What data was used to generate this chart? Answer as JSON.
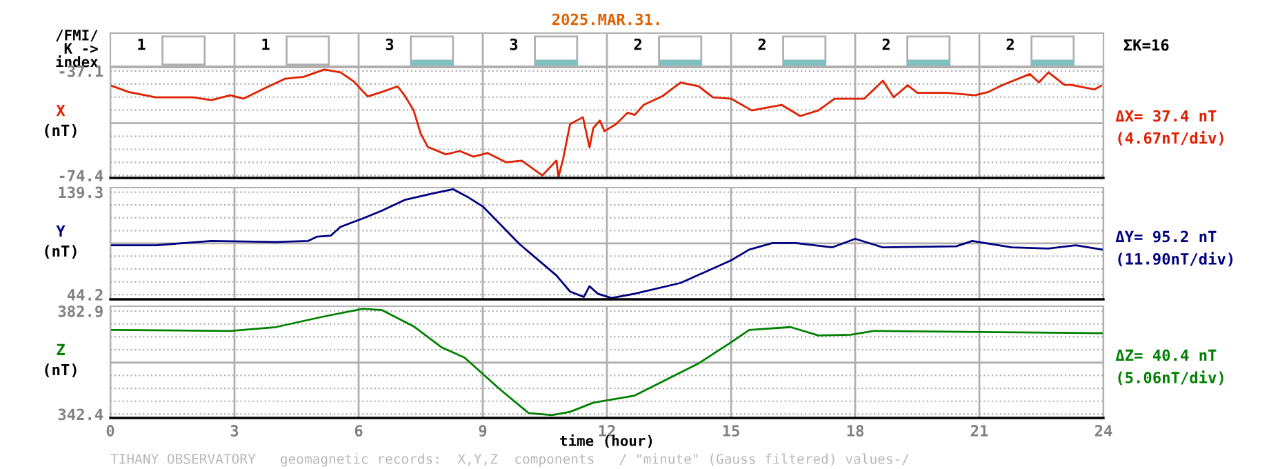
{
  "chart_data": [
    {
      "type": "other",
      "title": "2025.MAR.31.",
      "ylabel": "/FMI/\nK ->\nindex",
      "categories": [
        null,
        null,
        null,
        null,
        null,
        null,
        null,
        null
      ],
      "values": [
        1,
        1,
        3,
        3,
        2,
        2,
        2,
        2
      ],
      "data_labels": true,
      "colors": [
        null,
        null,
        "#80c0c0",
        "#80c0c0",
        "#80c0c0",
        "#80c0c0",
        "#80c0c0",
        "#80c0c0"
      ],
      "annotations": [
        "ΣK=16"
      ]
    },
    {
      "type": "line",
      "ylabel": "(nT)",
      "xlim": [
        0,
        24
      ],
      "xticks": [
        0,
        3,
        6,
        9,
        12,
        15,
        18,
        21,
        24
      ],
      "ylim": [
        -75.3,
        -35.9
      ],
      "yticks": [
        -37.1,
        {
          "value": -41.76,
          "label": null
        },
        {
          "value": -46.43,
          "label": null
        },
        {
          "value": -51.09,
          "label": null
        },
        {
          "value": -55.75,
          "label": null
        },
        {
          "value": -60.41,
          "label": null
        },
        {
          "value": -65.08,
          "label": null
        },
        {
          "value": -69.74,
          "label": null
        },
        -74.4
      ],
      "tick_labels": "y",
      "grid": true,
      "marker": "none",
      "line_style": "solid",
      "series": [
        {
          "name": "X",
          "color": "#e02000",
          "x": [
            0.03,
            0.44,
            1.1,
            2.0,
            2.44,
            2.9,
            3.22,
            3.78,
            4.22,
            4.67,
            5.17,
            5.56,
            5.89,
            6.06,
            6.22,
            6.56,
            6.94,
            7.11,
            7.33,
            7.5,
            7.67,
            8.11,
            8.44,
            8.78,
            9.11,
            9.56,
            9.94,
            10.44,
            10.78,
            10.83,
            10.94,
            11.11,
            11.42,
            11.58,
            11.67,
            11.83,
            11.94,
            12.22,
            12.5,
            12.67,
            12.89,
            13.33,
            13.78,
            14.22,
            14.56,
            15.0,
            15.5,
            16.22,
            16.67,
            17.11,
            17.5,
            18.22,
            18.67,
            18.93,
            19.27,
            19.5,
            20.22,
            20.89,
            21.22,
            21.56,
            22.22,
            22.44,
            22.67,
            23.06,
            23.22,
            23.78,
            23.94
          ],
          "values": [
            -42.4,
            -44.6,
            -46.5,
            -46.5,
            -47.5,
            -45.8,
            -47.0,
            -42.9,
            -39.9,
            -39.2,
            -36.6,
            -37.6,
            -40.9,
            -43.7,
            -46.2,
            -44.6,
            -42.6,
            -45.8,
            -51.2,
            -59.5,
            -64.2,
            -66.9,
            -65.7,
            -67.7,
            -66.4,
            -69.7,
            -69.1,
            -74.4,
            -69.1,
            -75.0,
            -68.6,
            -56.1,
            -53.6,
            -64.4,
            -57.5,
            -54.8,
            -58.6,
            -56.1,
            -52.0,
            -52.8,
            -49.2,
            -46.2,
            -41.2,
            -42.6,
            -46.5,
            -47.0,
            -51.2,
            -49.2,
            -53.2,
            -51.2,
            -47.0,
            -47.0,
            -40.6,
            -46.5,
            -42.2,
            -44.9,
            -44.9,
            -45.8,
            -44.6,
            -42.1,
            -38.2,
            -41.2,
            -37.6,
            -42.1,
            -42.1,
            -43.7,
            -42.4
          ]
        }
      ],
      "annotations": [
        "ΔX= 37.4 nT",
        "(4.67nT/div)"
      ]
    },
    {
      "type": "line",
      "ylabel": "(nT)",
      "xlim": [
        0,
        24
      ],
      "xticks": [
        0,
        3,
        6,
        9,
        12,
        15,
        18,
        21,
        24
      ],
      "ylim": [
        39.8,
        143.5
      ],
      "yticks": [
        139.3,
        {
          "value": 127.41,
          "label": null
        },
        {
          "value": 115.53,
          "label": null
        },
        {
          "value": 103.64,
          "label": null
        },
        {
          "value": 91.75,
          "label": null
        },
        {
          "value": 79.86,
          "label": null
        },
        {
          "value": 67.98,
          "label": null
        },
        {
          "value": 56.09,
          "label": null
        },
        44.2
      ],
      "tick_labels": "y",
      "grid": true,
      "marker": "none",
      "line_style": "solid",
      "series": [
        {
          "name": "Y",
          "color": "#000080",
          "x": [
            0.03,
            1.1,
            2.44,
            4.0,
            4.78,
            5.0,
            5.33,
            5.56,
            6.11,
            6.56,
            7.11,
            7.78,
            8.28,
            8.67,
            9.0,
            9.89,
            10.78,
            11.11,
            11.44,
            11.58,
            11.78,
            12.11,
            12.67,
            13.78,
            15.0,
            15.44,
            16.0,
            16.56,
            17.44,
            18.0,
            18.67,
            20.44,
            20.83,
            21.78,
            22.67,
            23.33,
            23.97
          ],
          "values": [
            90,
            90,
            94,
            93,
            94,
            98,
            99,
            107,
            115,
            122,
            132,
            138,
            142,
            134,
            126,
            91,
            62,
            47,
            42,
            52,
            45,
            41,
            45,
            55,
            76,
            86,
            92,
            92,
            88,
            96,
            88,
            89,
            94,
            88,
            87,
            90,
            86
          ]
        }
      ],
      "annotations": [
        "ΔY= 95.2 nT",
        "(11.90nT/div)"
      ]
    },
    {
      "type": "line",
      "ylabel": "(nT)",
      "xlabel": "time (hour)",
      "xlim": [
        0,
        24
      ],
      "xticks": [
        0,
        3,
        6,
        9,
        12,
        15,
        18,
        21,
        24
      ],
      "ylim": [
        340.9,
        384.8
      ],
      "yticks": [
        382.9,
        {
          "value": 377.84,
          "label": null
        },
        {
          "value": 372.78,
          "label": null
        },
        {
          "value": 367.71,
          "label": null
        },
        {
          "value": 362.65,
          "label": null
        },
        {
          "value": 357.59,
          "label": null
        },
        {
          "value": 352.53,
          "label": null
        },
        {
          "value": 347.47,
          "label": null
        },
        342.4
      ],
      "grid": true,
      "marker": "none",
      "line_style": "solid",
      "series": [
        {
          "name": "Z",
          "color": "#008000",
          "x": [
            0.03,
            2.89,
            4.0,
            5.11,
            6.11,
            6.56,
            7.33,
            8.0,
            8.56,
            9.44,
            10.11,
            10.67,
            11.11,
            11.67,
            12.67,
            14.22,
            15.0,
            15.44,
            16.44,
            17.11,
            17.89,
            18.44,
            23.97
          ],
          "values": [
            375.5,
            375.1,
            376.6,
            380.6,
            383.8,
            383.3,
            376.9,
            368.7,
            364.6,
            351.8,
            342.8,
            342.0,
            343.3,
            346.9,
            349.7,
            362.4,
            370.6,
            375.5,
            376.6,
            373.3,
            373.6,
            375.1,
            374.2
          ]
        }
      ],
      "annotations": [
        "ΔZ= 40.4 nT",
        "(5.06nT/div)",
        "TIHANY OBSERVATORY   geomagnetic records:  X,Y,Z  components   / \"minute\" (Gauss filtered) values-/"
      ]
    }
  ]
}
